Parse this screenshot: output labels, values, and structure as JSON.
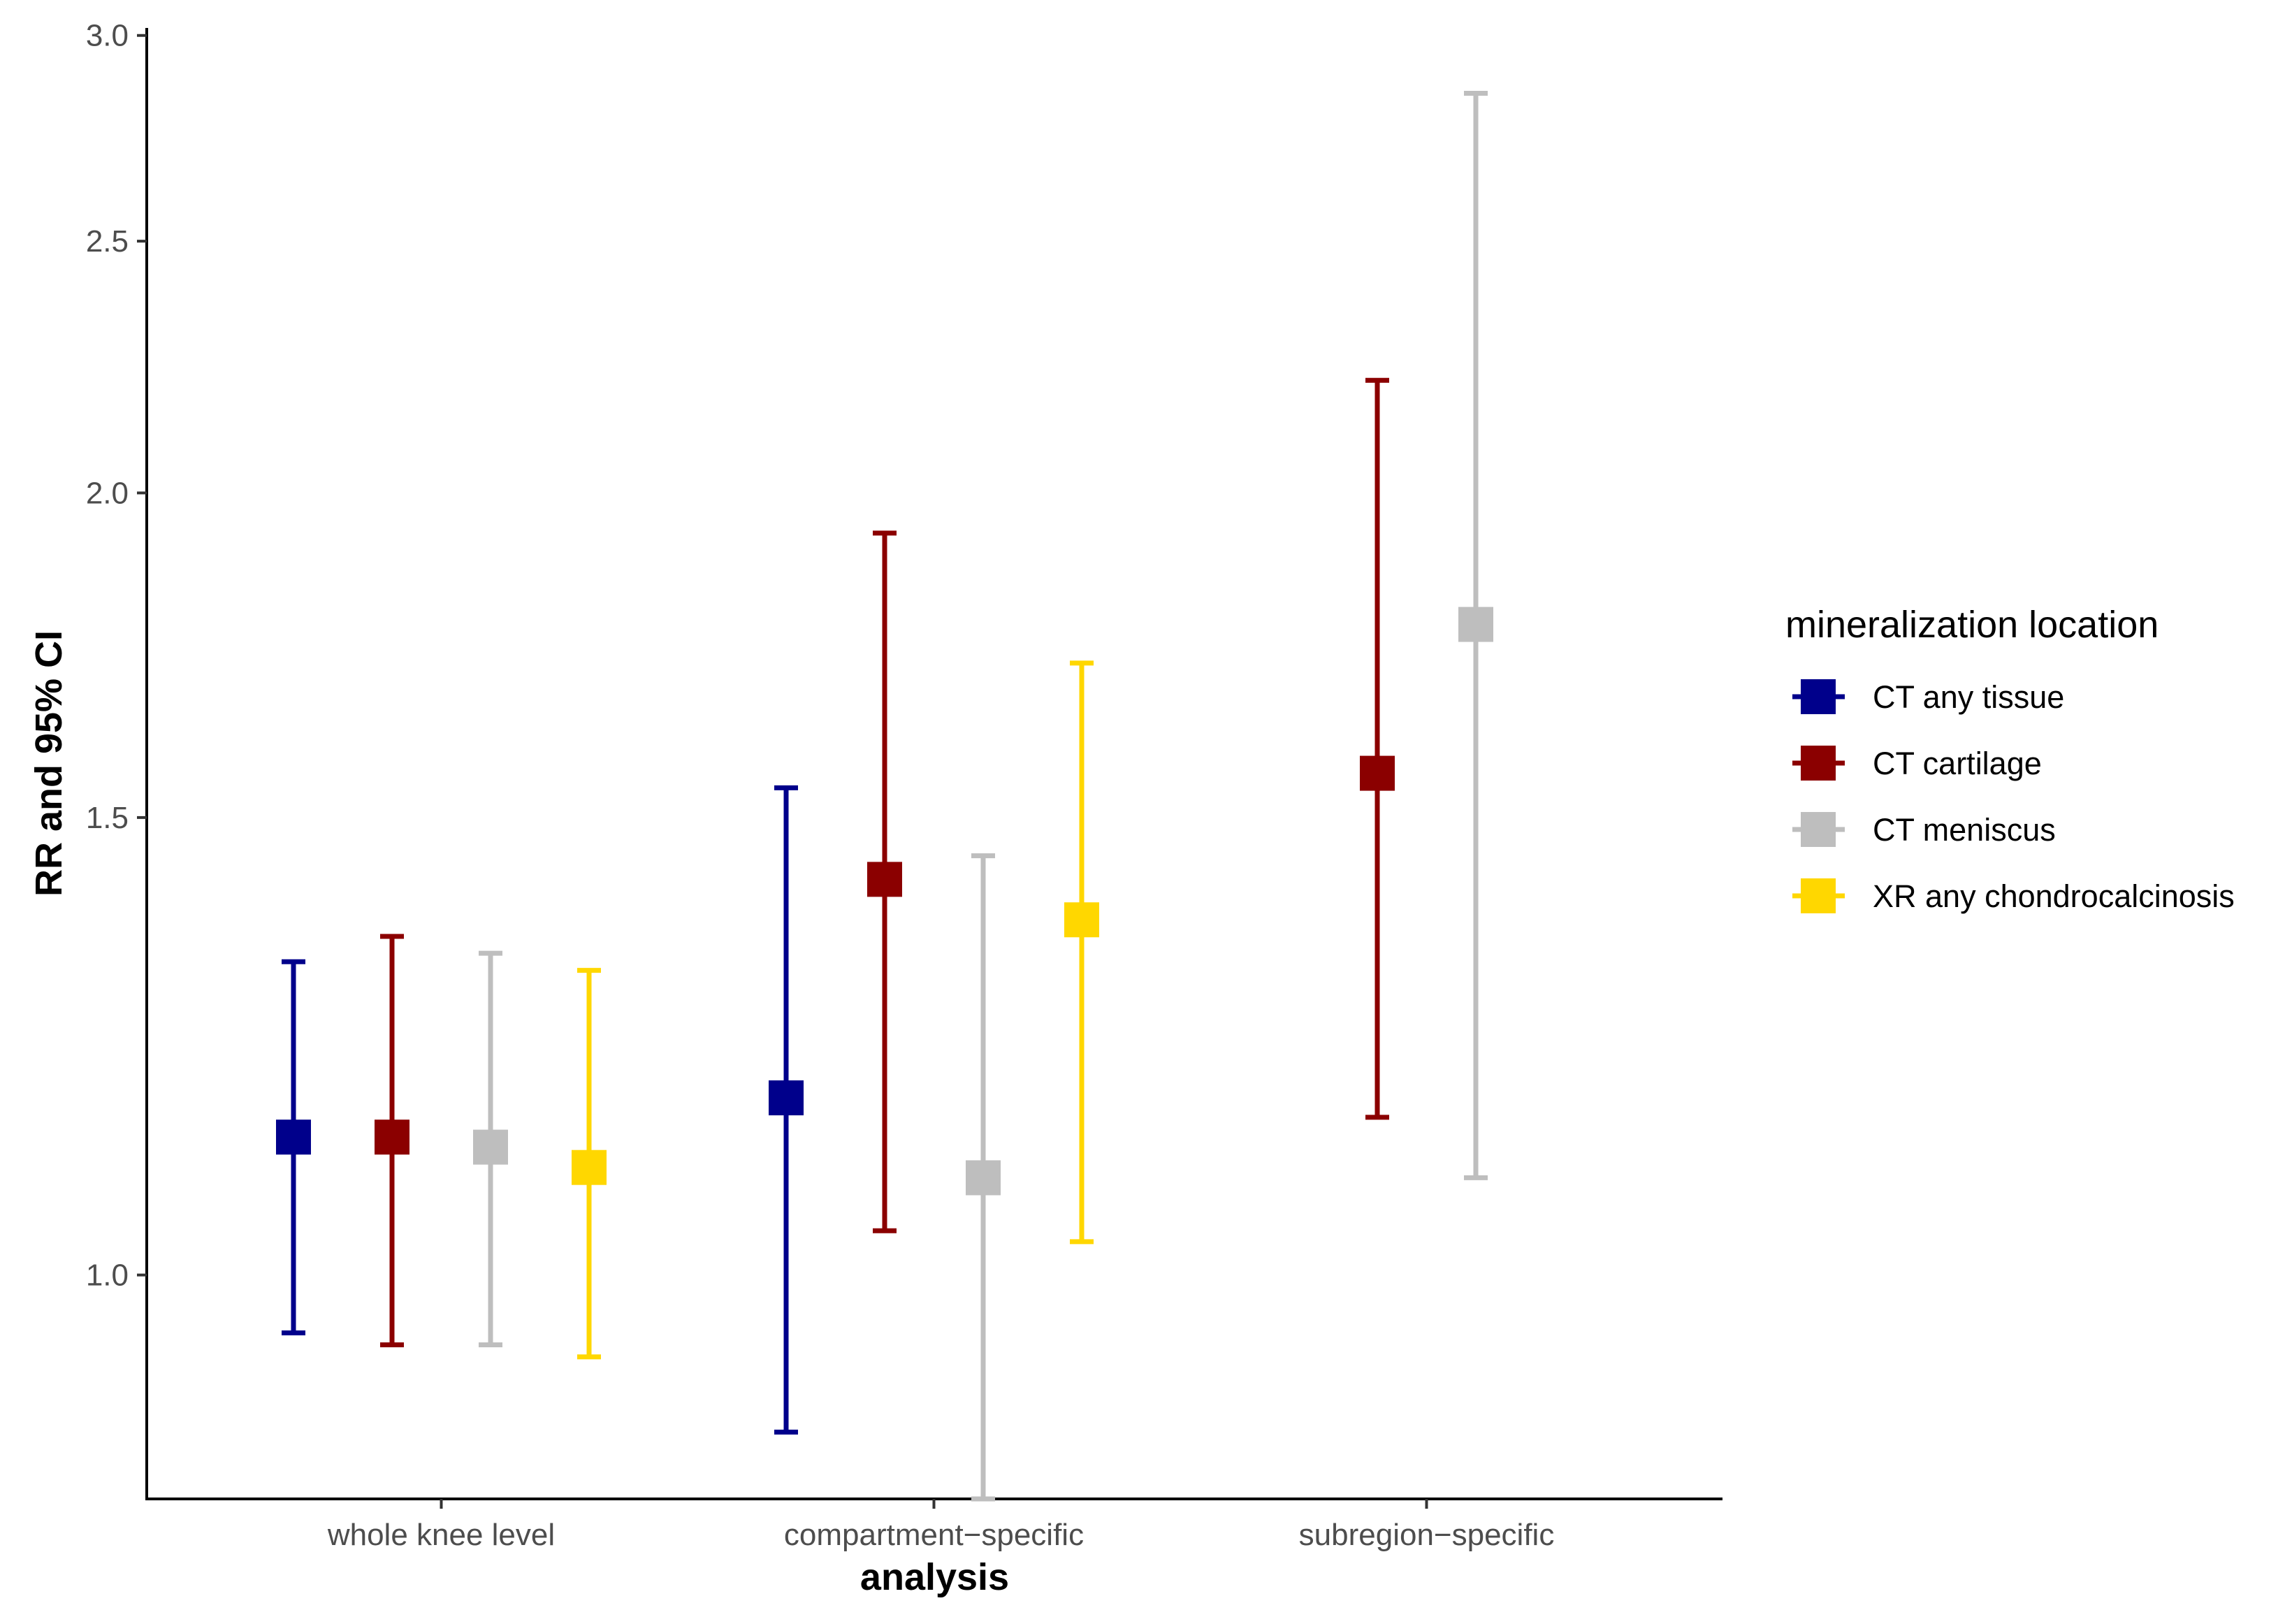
{
  "chart_data": {
    "type": "errorbar",
    "title": "",
    "xlabel": "analysis",
    "ylabel": "RR and 95% CI",
    "y_scale": "log",
    "ylim": [
      0.82,
      3.02
    ],
    "y_ticks": [
      1.0,
      1.5,
      2.0,
      2.5,
      3.0
    ],
    "y_tick_labels": [
      "1.0",
      "1.5",
      "2.0",
      "2.5",
      "3.0"
    ],
    "grid": false,
    "legend": {
      "title": "mineralization location",
      "position": "right"
    },
    "categories": [
      "whole knee level",
      "compartment−specific",
      "subregion−specific"
    ],
    "series": [
      {
        "name": "CT any tissue",
        "color": "#00008B",
        "points": [
          {
            "category": "whole knee level",
            "rr": 1.13,
            "lower": 0.95,
            "upper": 1.32
          },
          {
            "category": "compartment−specific",
            "rr": 1.17,
            "lower": 0.87,
            "upper": 1.54
          }
        ]
      },
      {
        "name": "CT cartilage",
        "color": "#8B0000",
        "points": [
          {
            "category": "whole knee level",
            "rr": 1.13,
            "lower": 0.94,
            "upper": 1.35
          },
          {
            "category": "compartment−specific",
            "rr": 1.42,
            "lower": 1.04,
            "upper": 1.93
          },
          {
            "category": "subregion−specific",
            "rr": 1.56,
            "lower": 1.15,
            "upper": 2.21
          }
        ]
      },
      {
        "name": "CT meniscus",
        "color": "#BEBEBE",
        "points": [
          {
            "category": "whole knee level",
            "rr": 1.12,
            "lower": 0.94,
            "upper": 1.33
          },
          {
            "category": "compartment−specific",
            "rr": 1.09,
            "lower": 0.82,
            "upper": 1.45
          },
          {
            "category": "subregion−specific",
            "rr": 1.78,
            "lower": 1.09,
            "upper": 2.85
          }
        ]
      },
      {
        "name": "XR any chondrocalcinosis",
        "color": "#FFD700",
        "points": [
          {
            "category": "whole knee level",
            "rr": 1.1,
            "lower": 0.93,
            "upper": 1.31
          },
          {
            "category": "compartment−specific",
            "rr": 1.37,
            "lower": 1.03,
            "upper": 1.72
          }
        ]
      }
    ]
  }
}
